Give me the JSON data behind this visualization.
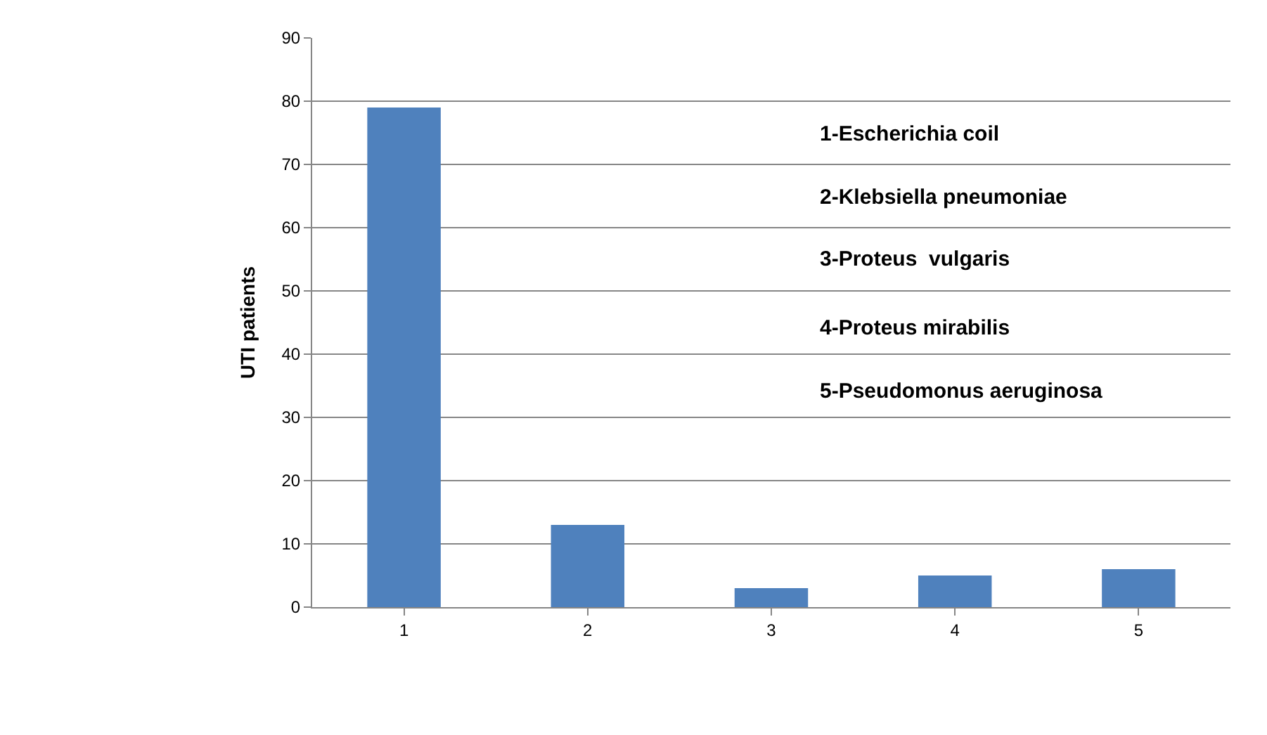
{
  "chart_data": {
    "type": "bar",
    "ylabel": "UTI patients",
    "categories": [
      "1",
      "2",
      "3",
      "4",
      "5"
    ],
    "values": [
      79,
      13,
      3,
      5,
      6
    ],
    "color": "#4f81bd",
    "ylim": [
      0,
      90
    ],
    "yticks": [
      0,
      10,
      20,
      30,
      40,
      50,
      60,
      70,
      80,
      90
    ],
    "grid": "y",
    "legend": false,
    "annotations": [
      "1-Escherichia coil",
      "2-Klebsiella pneumoniae",
      "3-Proteus  vulgaris",
      "4-Proteus mirabilis",
      "5-Pseudomonus aeruginosa"
    ]
  }
}
